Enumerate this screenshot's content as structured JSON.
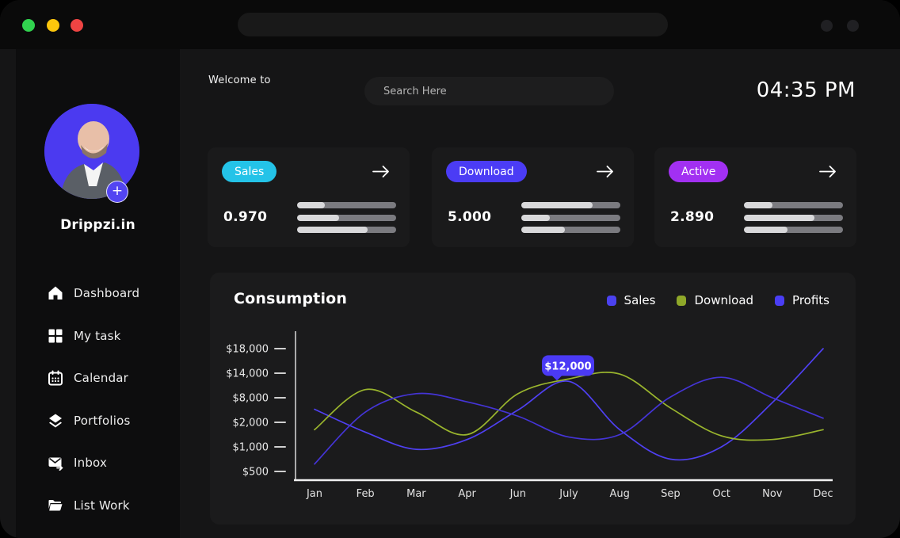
{
  "window": {
    "controls": [
      "green",
      "yellow",
      "red"
    ]
  },
  "header": {
    "welcome": "Welcome to",
    "search_placeholder": "Search Here",
    "time": "04:35 PM"
  },
  "sidebar": {
    "profile_name": "Drippzi.in",
    "items": [
      {
        "icon": "home-icon",
        "label": "Dashboard"
      },
      {
        "icon": "grid-icon",
        "label": "My task"
      },
      {
        "icon": "calendar-icon",
        "label": "Calendar"
      },
      {
        "icon": "layers-icon",
        "label": "Portfolios"
      },
      {
        "icon": "inbox-icon",
        "label": "Inbox"
      },
      {
        "icon": "folder-icon",
        "label": "List Work"
      }
    ]
  },
  "stats": [
    {
      "label": "Sales",
      "value": "0.970",
      "color": "#24c3e8",
      "bars": [
        28,
        42,
        71
      ]
    },
    {
      "label": "Download",
      "value": "5.000",
      "color": "#4b3cf5",
      "bars": [
        72,
        29,
        44
      ]
    },
    {
      "label": "Active",
      "value": "2.890",
      "color": "#a230f2",
      "bars": [
        29,
        71,
        44
      ]
    }
  ],
  "chart_data": {
    "type": "line",
    "title": "Consumption",
    "x_labels": [
      "Jan",
      "Feb",
      "Mar",
      "Apr",
      "Jun",
      "July",
      "Aug",
      "Sep",
      "Oct",
      "Nov",
      "Dec"
    ],
    "y_tick_labels": [
      "$18,000",
      "$14,000",
      "$8,000",
      "$2,000",
      "$1,000",
      "$500"
    ],
    "y_tick_values": [
      18000,
      14000,
      8000,
      2000,
      1000,
      500
    ],
    "legend": [
      {
        "label": "Sales",
        "color": "#4b42f0"
      },
      {
        "label": "Download",
        "color": "#8fa829"
      },
      {
        "label": "Profits",
        "color": "#4a3ef5"
      }
    ],
    "grid": false,
    "legend_position": "top-right",
    "tooltip": {
      "text": "$12,000",
      "series": "Sales",
      "x_label": "July"
    },
    "series": [
      {
        "name": "Sales",
        "color": "#4f40f2",
        "values": [
          5200,
          1600,
          950,
          1300,
          5000,
          12000,
          1700,
          750,
          1000,
          6800,
          18000
        ]
      },
      {
        "name": "Download",
        "color": "#9ab52d",
        "values": [
          1700,
          10000,
          4500,
          1500,
          9000,
          12600,
          13800,
          5500,
          1450,
          1300,
          1700
        ]
      },
      {
        "name": "Profits",
        "color": "#4434d6",
        "values": [
          650,
          4500,
          9000,
          7000,
          3500,
          1400,
          1500,
          8200,
          13000,
          8000,
          3000
        ]
      }
    ]
  }
}
